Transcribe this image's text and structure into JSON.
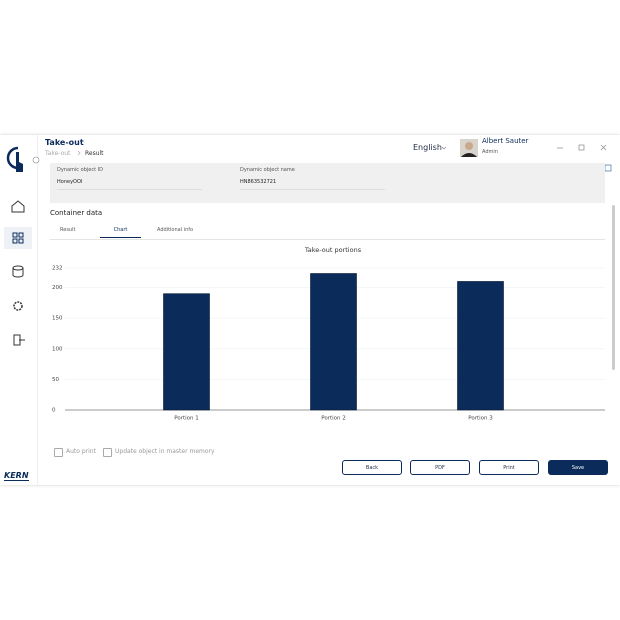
{
  "header": {
    "title": "Take-out",
    "breadcrumb": [
      "Take-out",
      "Result"
    ],
    "language": "English",
    "user": {
      "name": "Albert Sauter",
      "role": "Admin"
    }
  },
  "brand": "KERN",
  "object_info": [
    {
      "label": "Dynamic object ID",
      "value": "HoneyOOI"
    },
    {
      "label": "Dynamic object name",
      "value": "HN863532721"
    }
  ],
  "section_title": "Container data",
  "tabs": [
    "Result",
    "Chart",
    "Additional info"
  ],
  "chart_data": {
    "type": "bar",
    "title": "Take-out portions",
    "categories": [
      "Portion 1",
      "Portion 2",
      "Portion 3"
    ],
    "values": [
      190,
      223,
      210
    ],
    "color": "#0b2b5b",
    "ylim": [
      0,
      232
    ],
    "yticks": [
      0,
      50,
      100,
      150,
      200,
      232
    ],
    "grid": true
  },
  "options": [
    "Auto print",
    "Update object in master memory"
  ],
  "buttons": [
    "Back",
    "PDF",
    "Print",
    "Save"
  ]
}
